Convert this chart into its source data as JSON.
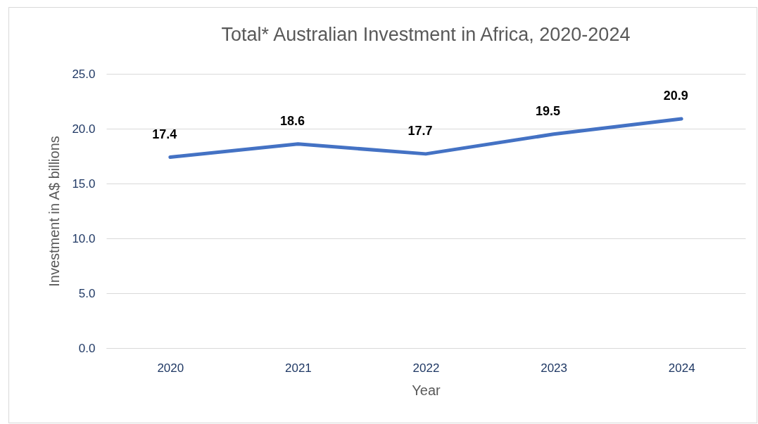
{
  "chart_data": {
    "type": "line",
    "title": "Total* Australian Investment in Africa, 2020-2024",
    "xlabel": "Year",
    "ylabel": "Investment in A$ billions",
    "categories": [
      "2020",
      "2021",
      "2022",
      "2023",
      "2024"
    ],
    "series": [
      {
        "color": "#4472c4",
        "values": [
          17.4,
          18.6,
          17.7,
          19.5,
          20.9
        ]
      }
    ],
    "ylim": [
      0,
      25
    ],
    "yticks": [
      {
        "value": 0,
        "label": "0.0"
      },
      {
        "value": 5,
        "label": "5.0"
      },
      {
        "value": 10,
        "label": "10.0"
      },
      {
        "value": 15,
        "label": "15.0"
      },
      {
        "value": 20,
        "label": "20.0"
      },
      {
        "value": 25,
        "label": "25.0"
      }
    ],
    "grid": "y",
    "data_labels": true,
    "line_style": "solid"
  }
}
